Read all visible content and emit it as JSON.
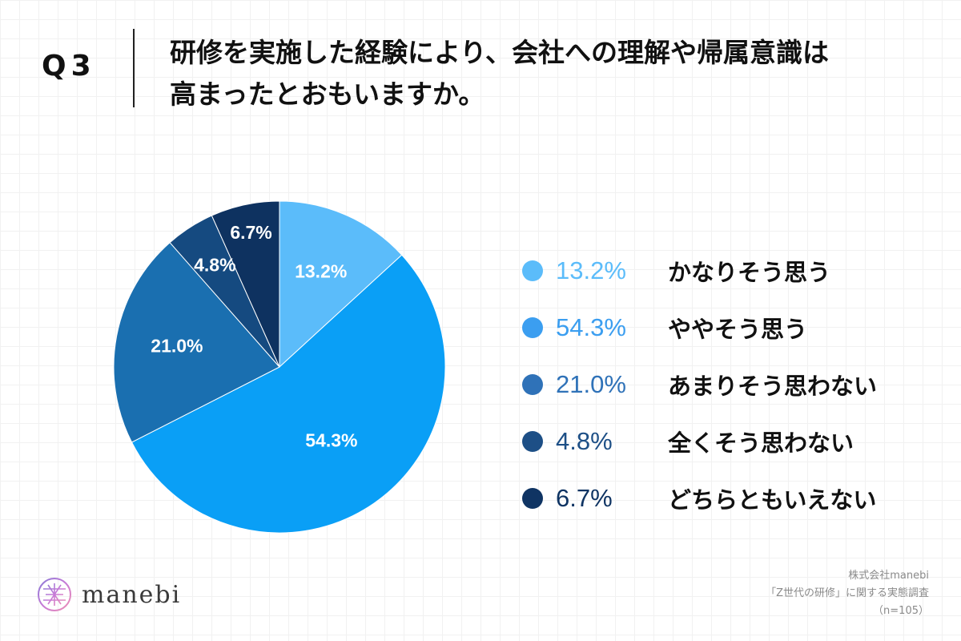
{
  "header": {
    "question_label": "Q3",
    "title_line1": "研修を実施した経験により、会社への理解や帰属意識は",
    "title_line2": "高まったとおもいますか。"
  },
  "chart_data": {
    "type": "pie",
    "categories": [
      "かなりそう思う",
      "ややそう思う",
      "あまりそう思わない",
      "全くそう思わない",
      "どちらともいえない"
    ],
    "values": [
      13.2,
      54.3,
      21.0,
      4.8,
      6.7
    ],
    "labels": [
      "13.2%",
      "54.3%",
      "21.0%",
      "4.8%",
      "6.7%"
    ],
    "colors": [
      "#5bbcfa",
      "#0a9ff6",
      "#1a6fb0",
      "#154a80",
      "#0e3260"
    ],
    "start_angle": "top",
    "direction": "clockwise",
    "legend_placement": "right"
  },
  "legend": {
    "items": [
      {
        "pct": "13.2%",
        "text": "かなりそう思う",
        "color": "#5bbcfa"
      },
      {
        "pct": "54.3%",
        "text": "ややそう思う",
        "color": "#3b9ef0"
      },
      {
        "pct": "21.0%",
        "text": "あまりそう思わない",
        "color": "#2f72b8"
      },
      {
        "pct": "4.8%",
        "text": "全くそう思わない",
        "color": "#1d4f86"
      },
      {
        "pct": "6.7%",
        "text": "どちらともいえない",
        "color": "#0f3463"
      }
    ]
  },
  "logo": {
    "wordmark": "manebi",
    "icon": "manebi-logo-icon"
  },
  "source": {
    "company": "株式会社manebi",
    "survey": "「Z世代の研修」に関する実態調査",
    "sample": "（n=105）"
  }
}
